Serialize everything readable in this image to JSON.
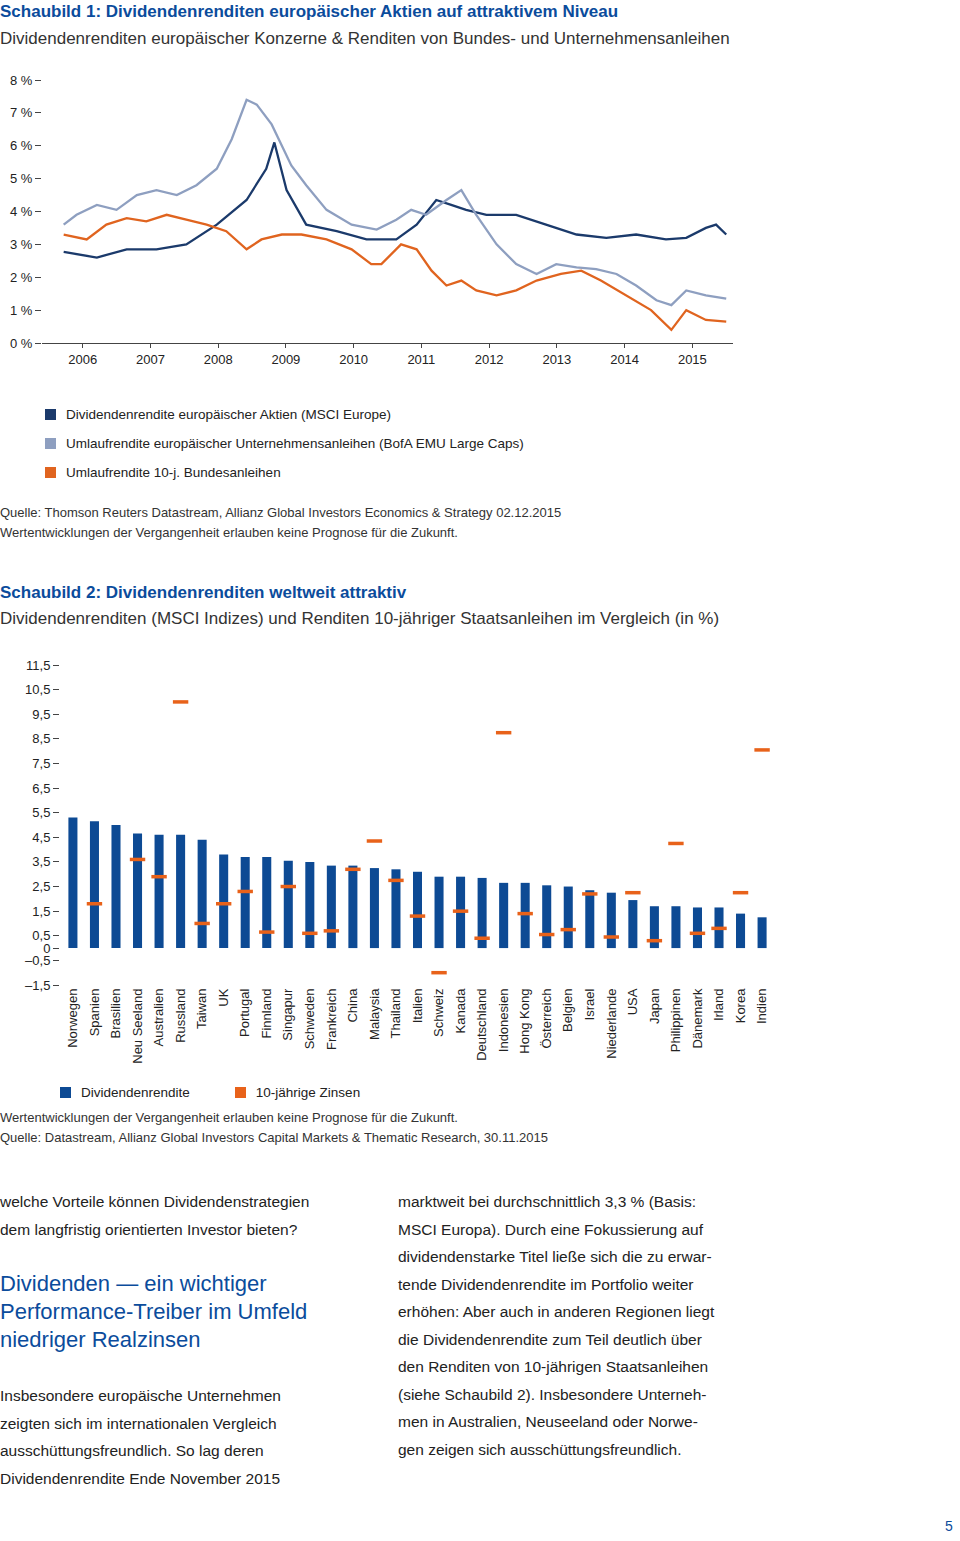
{
  "chart_data": [
    {
      "type": "line",
      "title": "Schaubild 1: Dividendenrenditen europäischer Aktien auf attraktivem Niveau",
      "subtitle": "Dividendenrenditen europäischer Konzerne & Renditen von Bundes- und Unternehmensanleihen",
      "xlim": [
        2005.9,
        2016.1
      ],
      "xticks": [
        {
          "value": 2006.5,
          "label": "2006"
        },
        {
          "value": 2007.5,
          "label": "2007"
        },
        {
          "value": 2008.5,
          "label": "2008"
        },
        {
          "value": 2009.5,
          "label": "2009"
        },
        {
          "value": 2010.5,
          "label": "2010"
        },
        {
          "value": 2011.5,
          "label": "2011"
        },
        {
          "value": 2012.5,
          "label": "2012"
        },
        {
          "value": 2013.5,
          "label": "2013"
        },
        {
          "value": 2014.5,
          "label": "2014"
        },
        {
          "value": 2015.5,
          "label": "2015"
        }
      ],
      "ylim": [
        0,
        8
      ],
      "yticks": [
        {
          "value": 0,
          "label": "0 %"
        },
        {
          "value": 1,
          "label": "1 %"
        },
        {
          "value": 2,
          "label": "2 %"
        },
        {
          "value": 3,
          "label": "3 %"
        },
        {
          "value": 4,
          "label": "4 %"
        },
        {
          "value": 5,
          "label": "5 %"
        },
        {
          "value": 6,
          "label": "6 %"
        },
        {
          "value": 7,
          "label": "7 %"
        },
        {
          "value": 8,
          "label": "8 %"
        }
      ],
      "grid": false,
      "legend": "bottom",
      "series": [
        {
          "name": "Dividendenrendite europäischer Aktien (MSCI Europe)",
          "color": "#1b3a6b",
          "x": [
            2006.22,
            2006.71,
            2007.15,
            2007.59,
            2008.03,
            2008.48,
            2008.92,
            2009.21,
            2009.33,
            2009.51,
            2009.8,
            2010.25,
            2010.69,
            2011.13,
            2011.43,
            2011.72,
            2011.94,
            2012.16,
            2012.46,
            2012.9,
            2013.34,
            2013.79,
            2014.23,
            2014.67,
            2015.11,
            2015.41,
            2015.7,
            2015.85,
            2016.0
          ],
          "values": [
            2.77,
            2.6,
            2.85,
            2.85,
            3.0,
            3.6,
            4.35,
            5.3,
            6.1,
            4.65,
            3.6,
            3.4,
            3.15,
            3.15,
            3.6,
            4.35,
            4.2,
            4.05,
            3.9,
            3.9,
            3.6,
            3.3,
            3.2,
            3.3,
            3.15,
            3.2,
            3.5,
            3.6,
            3.3
          ]
        },
        {
          "name": "Umlaufrendite europäischer Unternehmensanleihen (BofA EMU Large Caps)",
          "color": "#8e9fc0",
          "x": [
            2006.22,
            2006.41,
            2006.71,
            2007.0,
            2007.3,
            2007.59,
            2007.89,
            2008.18,
            2008.48,
            2008.7,
            2008.92,
            2009.07,
            2009.29,
            2009.58,
            2009.8,
            2010.1,
            2010.47,
            2010.84,
            2011.13,
            2011.35,
            2011.57,
            2011.87,
            2012.09,
            2012.31,
            2012.61,
            2012.9,
            2013.2,
            2013.49,
            2013.79,
            2014.08,
            2014.38,
            2014.67,
            2014.97,
            2015.19,
            2015.41,
            2015.7,
            2016.0
          ],
          "values": [
            3.6,
            3.9,
            4.2,
            4.05,
            4.5,
            4.65,
            4.5,
            4.8,
            5.3,
            6.2,
            7.4,
            7.25,
            6.65,
            5.4,
            4.8,
            4.05,
            3.6,
            3.45,
            3.75,
            4.05,
            3.9,
            4.35,
            4.65,
            3.9,
            3.0,
            2.4,
            2.1,
            2.4,
            2.3,
            2.25,
            2.1,
            1.75,
            1.3,
            1.15,
            1.6,
            1.45,
            1.35
          ]
        },
        {
          "name": "Umlaufrendite 10-j. Bundesanleihen",
          "color": "#e0641f",
          "x": [
            2006.22,
            2006.56,
            2006.85,
            2007.15,
            2007.44,
            2007.74,
            2008.03,
            2008.33,
            2008.62,
            2008.92,
            2009.14,
            2009.44,
            2009.73,
            2010.1,
            2010.47,
            2010.76,
            2010.91,
            2011.2,
            2011.43,
            2011.65,
            2011.87,
            2012.09,
            2012.31,
            2012.61,
            2012.9,
            2013.2,
            2013.56,
            2013.86,
            2014.15,
            2014.52,
            2014.89,
            2015.19,
            2015.41,
            2015.7,
            2016.0
          ],
          "values": [
            3.3,
            3.15,
            3.6,
            3.8,
            3.7,
            3.9,
            3.75,
            3.6,
            3.4,
            2.85,
            3.15,
            3.3,
            3.3,
            3.15,
            2.85,
            2.4,
            2.4,
            3.0,
            2.85,
            2.2,
            1.75,
            1.9,
            1.6,
            1.45,
            1.6,
            1.9,
            2.1,
            2.2,
            1.9,
            1.45,
            1.0,
            0.4,
            1.0,
            0.7,
            0.65
          ]
        }
      ],
      "annotations": [
        "Quelle: Thomson Reuters Datastream, Allianz Global Investors Economics & Strategy 02.12.2015",
        "Wertentwicklungen der Vergangenheit erlauben keine Prognose für die Zukunft."
      ]
    },
    {
      "type": "bar",
      "title": "Schaubild 2: Dividendenrenditen weltweit attraktiv",
      "subtitle": "Dividendenrenditen (MSCI Indizes) und Renditen 10-jähriger Staatsanleihen im Vergleich (in %)",
      "categories": [
        "Norwegen",
        "Spanien",
        "Brasilien",
        "Neu Seeland",
        "Australien",
        "Russland",
        "Taiwan",
        "UK",
        "Portugal",
        "Finnland",
        "Singapur",
        "Schweden",
        "Frankreich",
        "China",
        "Malaysia",
        "Thailand",
        "Italien",
        "Schweiz",
        "Kanada",
        "Deutschland",
        "Indonesien",
        "Hong Kong",
        "Österreich",
        "Belgien",
        "Israel",
        "Niederlande",
        "USA",
        "Japan",
        "Philippinen",
        "Dänemark",
        "Irland",
        "Korea",
        "Indien"
      ],
      "ylim": [
        -1.5,
        11.5
      ],
      "yticks": [
        {
          "value": 11.5,
          "label": "11,5"
        },
        {
          "value": 10.5,
          "label": "10,5"
        },
        {
          "value": 9.5,
          "label": "9,5"
        },
        {
          "value": 8.5,
          "label": "8,5"
        },
        {
          "value": 7.5,
          "label": "7,5"
        },
        {
          "value": 6.5,
          "label": "6,5"
        },
        {
          "value": 5.5,
          "label": "5,5"
        },
        {
          "value": 4.5,
          "label": "4,5"
        },
        {
          "value": 3.5,
          "label": "3,5"
        },
        {
          "value": 2.5,
          "label": "2,5"
        },
        {
          "value": 1.5,
          "label": "1,5"
        },
        {
          "value": 0.5,
          "label": "0,5"
        },
        0,
        {
          "value": -0.5,
          "label": "–0,5"
        },
        {
          "value": -1.5,
          "label": "–1,5"
        }
      ],
      "grid": false,
      "legend": "bottom",
      "series": [
        {
          "name": "Dividendenrendite",
          "type": "bar",
          "color": "#0d4a94",
          "values": [
            5.3,
            5.15,
            5.0,
            4.65,
            4.6,
            4.6,
            4.4,
            3.8,
            3.7,
            3.7,
            3.55,
            3.5,
            3.35,
            3.35,
            3.25,
            3.2,
            3.1,
            2.9,
            2.9,
            2.85,
            2.65,
            2.65,
            2.55,
            2.5,
            2.35,
            2.25,
            1.95,
            1.7,
            1.7,
            1.65,
            1.65,
            1.4,
            1.25
          ]
        },
        {
          "name": "10-jährige Zinsen",
          "type": "scatter",
          "marker": "dash",
          "color": "#e8621a",
          "values": [
            null,
            1.8,
            null,
            3.6,
            2.9,
            10.0,
            1.0,
            1.8,
            2.3,
            0.65,
            2.5,
            0.6,
            0.7,
            3.2,
            4.35,
            2.75,
            1.3,
            -1.0,
            1.5,
            0.4,
            8.75,
            1.4,
            0.55,
            0.75,
            2.2,
            0.45,
            2.25,
            0.3,
            4.25,
            0.6,
            0.8,
            2.25,
            8.05
          ]
        }
      ],
      "annotations": [
        "Wertentwicklungen der Vergangenheit erlauben keine Prognose für die Zukunft.",
        "Quelle: Datastream, Allianz Global Investors Capital Markets & Thematic Research, 30.11.2015"
      ]
    }
  ],
  "text": {
    "left_intro": [
      "welche Vorteile können Dividendenstrategien",
      "dem langfristig orientierten Investor bieten?"
    ],
    "heading": [
      "Dividenden — ein wichtiger",
      "Performance-Treiber im Umfeld",
      "niedriger Realzinsen"
    ],
    "left_paragraph": [
      "Insbesondere europäische Unternehmen",
      "zeigten sich im internationalen Vergleich",
      "ausschüttungsfreundlich. So lag deren",
      "Dividendenrendite Ende November 2015"
    ],
    "right_paragraph": [
      "marktweit bei durchschnittlich 3,3 % (Basis:",
      "MSCI Europa). Durch eine Fokussierung auf",
      "dividendenstarke Titel ließe sich die zu erwar-",
      "tende Dividendenrendite im Portfolio weiter",
      "erhöhen: Aber auch in anderen Regionen liegt",
      "die Dividendenrendite zum Teil deutlich über",
      "den Renditen von 10-jährigen Staatsanleihen",
      "(siehe Schaubild 2). Insbesondere Unterneh-",
      "men in Australien, Neuseeland oder Norwe-",
      "gen zeigen sich ausschüttungsfreundlich."
    ],
    "page_number": "5"
  }
}
